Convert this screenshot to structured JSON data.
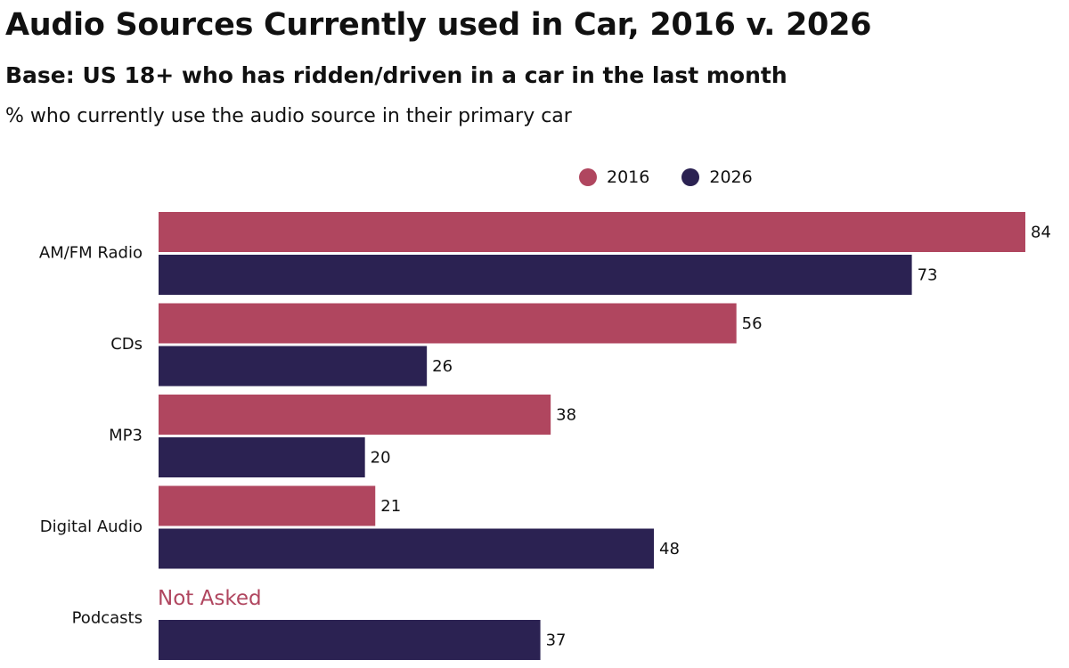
{
  "colors": {
    "series_2016": "#b0465f",
    "series_2026": "#2b2252"
  },
  "chart_data": {
    "type": "bar",
    "orientation": "horizontal",
    "title": "Audio Sources Currently used in Car, 2016 v. 2026",
    "subtitle": "Base: US 18+ who has ridden/driven in a car in the last month",
    "note": "% who currently use the audio source in their primary car",
    "categories": [
      "AM/FM Radio",
      "CDs",
      "MP3",
      "Digital Audio",
      "Podcasts"
    ],
    "series": [
      {
        "name": "2016",
        "color": "#b0465f",
        "values": [
          84,
          56,
          38,
          21,
          null
        ]
      },
      {
        "name": "2026",
        "color": "#2b2252",
        "values": [
          73,
          26,
          20,
          48,
          37
        ]
      }
    ],
    "annotations": [
      {
        "category": "Podcasts",
        "series": "2016",
        "text": "Not Asked"
      }
    ],
    "xlim": [
      0,
      84
    ],
    "grid": false,
    "legend": "top"
  }
}
